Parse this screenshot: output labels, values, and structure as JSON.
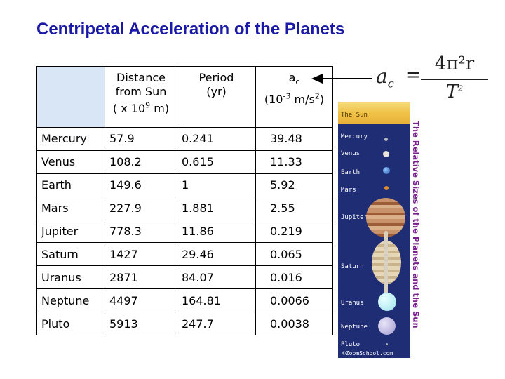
{
  "title": "Centripetal Acceleration of the Planets",
  "table": {
    "headers": {
      "distance": "Distance from Sun",
      "distance_unit_prefix": "( x 10",
      "distance_unit_exp": "9",
      "distance_unit_suffix": " m)",
      "period": "Period",
      "period_unit": "(yr)",
      "accel_symbol": "a",
      "accel_sub": "c",
      "accel_unit_prefix": "(10",
      "accel_unit_exp": "-3",
      "accel_unit_mid": " m/s",
      "accel_unit_exp2": "2",
      "accel_unit_suffix": ")"
    },
    "rows": [
      {
        "planet": "Mercury",
        "distance": "57.9",
        "period": "0.241",
        "accel": "39.48"
      },
      {
        "planet": "Venus",
        "distance": "108.2",
        "period": "0.615",
        "accel": "11.33"
      },
      {
        "planet": "Earth",
        "distance": "149.6",
        "period": "1",
        "accel": "5.92"
      },
      {
        "planet": "Mars",
        "distance": "227.9",
        "period": "1.881",
        "accel": "2.55"
      },
      {
        "planet": "Jupiter",
        "distance": "778.3",
        "period": "11.86",
        "accel": "0.219"
      },
      {
        "planet": "Saturn",
        "distance": "1427",
        "period": "29.46",
        "accel": "0.065"
      },
      {
        "planet": "Uranus",
        "distance": "2871",
        "period": "84.07",
        "accel": "0.016"
      },
      {
        "planet": "Neptune",
        "distance": "4497",
        "period": "164.81",
        "accel": "0.0066"
      },
      {
        "planet": "Pluto",
        "distance": "5913",
        "period": "247.7",
        "accel": "0.0038"
      }
    ]
  },
  "formula": {
    "lhs": "a",
    "lhs_sub": "c",
    "equals": "=",
    "numerator": "4π²r",
    "denominator_base": "T",
    "denominator_exp": "2"
  },
  "image": {
    "caption": "The Relative Sizes of the Planets and the Sun",
    "sun_label": "The Sun",
    "planet_labels": [
      "Mercury",
      "Venus",
      "Earth",
      "Mars",
      "Jupiter",
      "Saturn",
      "Uranus",
      "Neptune",
      "Pluto"
    ],
    "credit": "©ZoomSchool.com"
  }
}
